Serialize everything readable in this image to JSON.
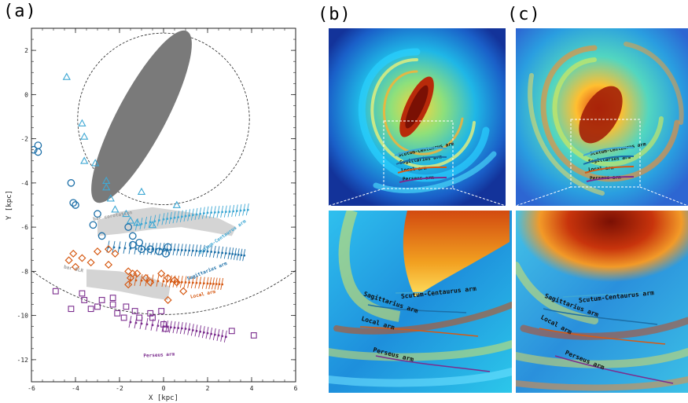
{
  "panels": {
    "a": "(a)",
    "b": "(b)",
    "c": "(c)"
  },
  "colors": {
    "scutum": "#3fa8d4",
    "sagittarius": "#1c6fa8",
    "local": "#d65a14",
    "perseus": "#7b2d8e",
    "bar": "#7a7a7a",
    "grey": "#d4d4d4"
  },
  "chart_data": {
    "type": "scatter",
    "title": "",
    "xlabel": "X [kpc]",
    "ylabel": "Y [kpc]",
    "xlim": [
      -6,
      6
    ],
    "ylim": [
      -13,
      3
    ],
    "xticks": [
      -6,
      -4,
      -2,
      0,
      2,
      4,
      6
    ],
    "yticks": [
      -12,
      -10,
      -8,
      -6,
      -4,
      -2,
      0,
      2
    ],
    "circles": [
      {
        "cx": 0,
        "cy": -1.1,
        "r": 3.9
      },
      {
        "cx": 0,
        "cy": 0,
        "r": 10
      }
    ],
    "bar": {
      "cx": -1.0,
      "cy": -1.0,
      "semi_major": 4.4,
      "semi_minor": 1.1,
      "angle_deg": 62
    },
    "grey_bands": [
      {
        "name": "bar corotation",
        "points": [
          [
            -3.0,
            -5.7
          ],
          [
            -2.0,
            -5.3
          ],
          [
            -0.5,
            -5.1
          ],
          [
            1,
            -5.3
          ],
          [
            2.5,
            -5.6
          ],
          [
            3.3,
            -6.0
          ],
          [
            3.1,
            -6.4
          ],
          [
            2,
            -6.2
          ],
          [
            0.8,
            -6.0
          ],
          [
            -0.5,
            -6.1
          ],
          [
            -2,
            -6.3
          ],
          [
            -3.0,
            -6.4
          ]
        ]
      },
      {
        "name": "bar OLR",
        "points": [
          [
            -3.5,
            -7.9
          ],
          [
            -2,
            -8.0
          ],
          [
            -0.5,
            -8.3
          ],
          [
            0.3,
            -8.7
          ],
          [
            0.2,
            -9.3
          ],
          [
            -0.5,
            -9.2
          ],
          [
            -2,
            -8.9
          ],
          [
            -3.5,
            -8.7
          ]
        ]
      }
    ],
    "series": [
      {
        "name": "Scutum-Centaurus arm",
        "marker": "triangle",
        "points": [
          [
            -4.4,
            0.8
          ],
          [
            -3.7,
            -1.3
          ],
          [
            -3.6,
            -1.9
          ],
          [
            -3.6,
            -3.0
          ],
          [
            -3.1,
            -3.1
          ],
          [
            -2.6,
            -3.9
          ],
          [
            -2.6,
            -4.2
          ],
          [
            -2.4,
            -4.7
          ],
          [
            -2.2,
            -5.2
          ],
          [
            -1.7,
            -5.4
          ],
          [
            -1.0,
            -4.4
          ],
          [
            -1.5,
            -5.7
          ],
          [
            -1.2,
            -5.8
          ],
          [
            -0.5,
            -5.9
          ],
          [
            0.6,
            -5.0
          ]
        ],
        "arm": [
          [
            -1.2,
            -5.9
          ],
          [
            0,
            -5.65
          ],
          [
            1,
            -5.5
          ],
          [
            2,
            -5.35
          ],
          [
            3,
            -5.3
          ],
          [
            4,
            -5.2
          ]
        ]
      },
      {
        "name": "Sagittarius arm",
        "marker": "circle",
        "points": [
          [
            -5.9,
            -2.5
          ],
          [
            -5.7,
            -2.3
          ],
          [
            -5.7,
            -2.6
          ],
          [
            -4.2,
            -4.0
          ],
          [
            -4.1,
            -4.9
          ],
          [
            -4.0,
            -5.0
          ],
          [
            -3.2,
            -5.9
          ],
          [
            -3.0,
            -5.4
          ],
          [
            -2.8,
            -6.4
          ],
          [
            -1.6,
            -6.0
          ],
          [
            -1.4,
            -6.4
          ],
          [
            -1.4,
            -6.8
          ],
          [
            -1.1,
            -6.7
          ],
          [
            -1.0,
            -7.0
          ],
          [
            -0.6,
            -7.0
          ],
          [
            -0.2,
            -7.1
          ],
          [
            0.2,
            -6.9
          ],
          [
            0.1,
            -7.2
          ]
        ],
        "arm": [
          [
            -2.5,
            -6.9
          ],
          [
            -1,
            -7.0
          ],
          [
            0,
            -7.0
          ],
          [
            1,
            -7.05
          ],
          [
            2,
            -7.1
          ],
          [
            3,
            -7.2
          ],
          [
            3.8,
            -7.3
          ]
        ]
      },
      {
        "name": "Local arm",
        "marker": "diamond",
        "points": [
          [
            -4.3,
            -7.5
          ],
          [
            -4.1,
            -7.2
          ],
          [
            -4.0,
            -7.8
          ],
          [
            -3.7,
            -7.4
          ],
          [
            -3.3,
            -7.6
          ],
          [
            -3.0,
            -7.1
          ],
          [
            -2.5,
            -7.0
          ],
          [
            -2.5,
            -7.7
          ],
          [
            -2.2,
            -7.2
          ],
          [
            -1.6,
            -8.0
          ],
          [
            -1.5,
            -8.3
          ],
          [
            -1.4,
            -8.1
          ],
          [
            -1.2,
            -8.1
          ],
          [
            -0.8,
            -8.3
          ],
          [
            -1.6,
            -8.6
          ],
          [
            -0.6,
            -8.5
          ],
          [
            -0.1,
            -8.1
          ],
          [
            0.2,
            -8.3
          ],
          [
            0.5,
            -8.4
          ],
          [
            0.6,
            -8.5
          ],
          [
            0.2,
            -9.3
          ],
          [
            0.9,
            -8.9
          ]
        ],
        "arm": [
          [
            -1.5,
            -8.4
          ],
          [
            0,
            -8.45
          ],
          [
            1,
            -8.5
          ],
          [
            2,
            -8.55
          ],
          [
            2.8,
            -8.6
          ]
        ]
      },
      {
        "name": "Perseus arm",
        "marker": "square",
        "points": [
          [
            -4.9,
            -8.9
          ],
          [
            -4.2,
            -9.7
          ],
          [
            -3.7,
            -9.0
          ],
          [
            -3.6,
            -9.3
          ],
          [
            -3.3,
            -9.7
          ],
          [
            -3.0,
            -9.6
          ],
          [
            -2.8,
            -9.3
          ],
          [
            -2.3,
            -9.2
          ],
          [
            -2.3,
            -9.5
          ],
          [
            -2.1,
            -9.9
          ],
          [
            -1.8,
            -10.1
          ],
          [
            -1.7,
            -9.6
          ],
          [
            -1.3,
            -9.8
          ],
          [
            -1.1,
            -10.1
          ],
          [
            -0.6,
            -9.9
          ],
          [
            -0.5,
            -10.1
          ],
          [
            -0.1,
            -9.8
          ],
          [
            0.0,
            -10.4
          ],
          [
            0.1,
            -10.6
          ],
          [
            3.1,
            -10.7
          ],
          [
            4.1,
            -10.9
          ]
        ],
        "arm": [
          [
            -1.5,
            -10.3
          ],
          [
            0,
            -10.5
          ],
          [
            1,
            -10.6
          ],
          [
            2,
            -10.8
          ],
          [
            3,
            -11.0
          ]
        ]
      }
    ],
    "annotations": [
      {
        "text": "bar corotation",
        "x": -2.3,
        "y": -5.55,
        "rotate": -10,
        "color": "#9a9a9a"
      },
      {
        "text": "bar OLR",
        "x": -4.1,
        "y": -7.95,
        "rotate": 12,
        "color": "#9a9a9a"
      },
      {
        "text": "Scutum-Centaurus arm",
        "x": 2.7,
        "y": -6.5,
        "rotate": -35,
        "color": "#3fa8d4"
      },
      {
        "text": "Sagittarius arm",
        "x": 2.0,
        "y": -8.05,
        "rotate": -22,
        "color": "#1c6fa8"
      },
      {
        "text": "Local arm",
        "x": 1.8,
        "y": -9.1,
        "rotate": -12,
        "color": "#d65a14"
      },
      {
        "text": "Perseus arm",
        "x": -0.2,
        "y": -11.85,
        "rotate": -3,
        "color": "#7b2d8e"
      }
    ]
  },
  "images": {
    "b_top": {
      "labels": [
        {
          "text": "Scutum-Centaurus arm",
          "rotate": -12
        },
        {
          "text": "Sagittarius arm",
          "rotate": -8
        },
        {
          "text": "Local arm",
          "rotate": -5
        },
        {
          "text": "Perseus arm",
          "rotate": -3
        }
      ]
    },
    "b_bottom": {
      "labels": [
        {
          "text": "Scutum-Centaurus arm",
          "rotate": -6
        },
        {
          "text": "Sagittarius arm",
          "rotate": 18
        },
        {
          "text": "Local arm",
          "rotate": 16
        },
        {
          "text": "Perseus arm",
          "rotate": 14
        }
      ]
    },
    "c_top": {
      "labels": [
        {
          "text": "Scutum-Centaurus arm",
          "rotate": -10
        },
        {
          "text": "Sagittarius arm",
          "rotate": -6
        },
        {
          "text": "Local arm",
          "rotate": -4
        },
        {
          "text": "Perseus arm",
          "rotate": -2
        }
      ]
    },
    "c_bottom": {
      "labels": [
        {
          "text": "Scutum-Centaurus arm",
          "rotate": -6
        },
        {
          "text": "Sagittarius arm",
          "rotate": 20
        },
        {
          "text": "Local arm",
          "rotate": 28
        },
        {
          "text": "Perseus arm",
          "rotate": 22
        }
      ]
    }
  }
}
